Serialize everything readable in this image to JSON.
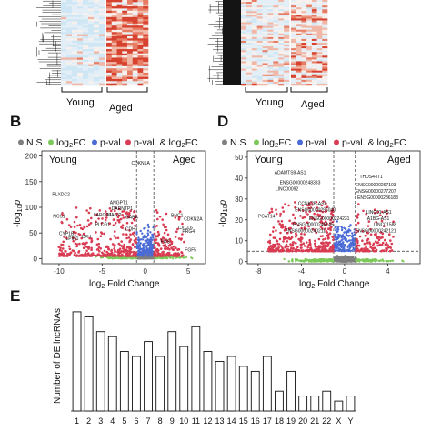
{
  "panels": {
    "top_groups": [
      "Young",
      "Aged"
    ],
    "B": {
      "letter": "B"
    },
    "D": {
      "letter": "D"
    },
    "E": {
      "letter": "E"
    }
  },
  "legend": {
    "ns": "N.S.",
    "fc_prefix": "log",
    "fc_sub": "2",
    "fc_suffix": "FC",
    "pval": "p-val",
    "both_prefix": "p-val. & log",
    "both_sub": "2",
    "both_suffix": "FC",
    "colors": {
      "ns": "#7f7f7f",
      "fc": "#7cc85a",
      "pval": "#4b6bd6",
      "both": "#d93c52"
    }
  },
  "chart_data": [
    {
      "type": "heatmap",
      "panel": "A-left",
      "column_groups": [
        "Young",
        "Aged"
      ],
      "colors": {
        "low": "#cfe7f5",
        "mid": "#f7f1ee",
        "high": "#d7422f"
      }
    },
    {
      "type": "heatmap",
      "panel": "A-right",
      "column_groups": [
        "Young",
        "Aged"
      ],
      "colors": {
        "low": "#cfe7f5",
        "mid": "#f7f1ee",
        "high": "#d7422f"
      }
    },
    {
      "type": "scatter",
      "panel": "B",
      "xlabel": "log2 Fold Change",
      "xlabel_parts": {
        "pre": "log",
        "sub": "2",
        "post": " Fold Change"
      },
      "ylabel_parts": {
        "pre": "-log",
        "sub": "10",
        "post": "p"
      },
      "xlim": [
        -12,
        7
      ],
      "ylim": [
        -10,
        210
      ],
      "xticks": [
        -10,
        -5,
        0,
        5
      ],
      "yticks": [
        0,
        50,
        100,
        150,
        200
      ],
      "group_labels": {
        "left": "Young",
        "right": "Aged"
      },
      "thresholds": {
        "fc": [
          -1,
          1
        ],
        "p": 5
      },
      "annotations": [
        {
          "text": "CDKN1A",
          "x": -1.6,
          "y": 183
        },
        {
          "text": "PLXDC2",
          "x": -10.8,
          "y": 122
        },
        {
          "text": "ANGPT1",
          "x": -4.1,
          "y": 106
        },
        {
          "text": "DARNTP1",
          "x": -3.9,
          "y": 95
        },
        {
          "text": "NCS1",
          "x": -10.7,
          "y": 80
        },
        {
          "text": "LARGE1",
          "x": -6.0,
          "y": 82
        },
        {
          "text": "MAGI2",
          "x": -4.4,
          "y": 82
        },
        {
          "text": "GABA",
          "x": -2.3,
          "y": 78
        },
        {
          "text": "BNC1",
          "x": 3.0,
          "y": 81
        },
        {
          "text": "CDKN2A",
          "x": 4.5,
          "y": 74
        },
        {
          "text": "CXCL6",
          "x": 3.8,
          "y": 57
        },
        {
          "text": "PLCG1",
          "x": -5.8,
          "y": 64
        },
        {
          "text": "CDH7",
          "x": -2.3,
          "y": 55
        },
        {
          "text": "PRG4",
          "x": 4.3,
          "y": 50
        },
        {
          "text": "CYP1B1",
          "x": -10.0,
          "y": 46
        },
        {
          "text": "CFH",
          "x": -7.4,
          "y": 40
        },
        {
          "text": "LPIN1",
          "x": -9.2,
          "y": 36
        },
        {
          "text": "FOS",
          "x": 1.8,
          "y": 30
        },
        {
          "text": "FGF5",
          "x": 4.6,
          "y": 14
        }
      ]
    },
    {
      "type": "scatter",
      "panel": "D",
      "xlabel": "log2 Fold Change",
      "xlabel_parts": {
        "pre": "log",
        "sub": "2",
        "post": " Fold Change"
      },
      "ylabel_parts": {
        "pre": "-log",
        "sub": "10",
        "post": "p"
      },
      "xlim": [
        -9,
        7
      ],
      "ylim": [
        -1,
        53
      ],
      "xticks": [
        -8,
        -4,
        0,
        4
      ],
      "yticks": [
        0,
        10,
        20,
        30,
        40,
        50
      ],
      "group_labels": {
        "left": "Young",
        "right": "Aged"
      },
      "thresholds": {
        "fc": [
          -1,
          1
        ],
        "p": 5
      },
      "annotations": [
        {
          "text": "THDS4-IT1",
          "x": 1.4,
          "y": 40
        },
        {
          "text": "ADAMTS9-AS1",
          "x": -6.5,
          "y": 42
        },
        {
          "text": "ENSG00000248333",
          "x": -6.0,
          "y": 37
        },
        {
          "text": "ENSG00000267103",
          "x": 1.0,
          "y": 36
        },
        {
          "text": "LINC00092",
          "x": -6.4,
          "y": 34
        },
        {
          "text": "ENSG00000277207",
          "x": 1.0,
          "y": 33
        },
        {
          "text": "ENSG00000286188",
          "x": 1.2,
          "y": 30
        },
        {
          "text": "CCNK2P-AS1",
          "x": -4.3,
          "y": 27
        },
        {
          "text": "ENSG00000296040",
          "x": -4.6,
          "y": 24
        },
        {
          "text": "LINC01-AS1",
          "x": 2.0,
          "y": 23
        },
        {
          "text": "PCAT14",
          "x": -8.0,
          "y": 21
        },
        {
          "text": "ENSG00000224231",
          "x": -3.3,
          "y": 20
        },
        {
          "text": "A1BG-AS1",
          "x": 2.1,
          "y": 20
        },
        {
          "text": "ENSG00000246145",
          "x": -4.8,
          "y": 17
        },
        {
          "text": "LINC01588",
          "x": 2.7,
          "y": 17
        },
        {
          "text": "ENSG00000240211",
          "x": -5.5,
          "y": 14
        },
        {
          "text": "ENSG00000242121",
          "x": 1.0,
          "y": 14
        }
      ]
    },
    {
      "type": "bar",
      "panel": "E",
      "ylabel": "Number of DE lncRNAs",
      "categories": [
        "1",
        "2",
        "3",
        "4",
        "5",
        "6",
        "7",
        "8",
        "9",
        "10",
        "11",
        "12",
        "13",
        "14",
        "15",
        "16",
        "17",
        "18",
        "19",
        "20",
        "21",
        "22",
        "X",
        "Y"
      ],
      "tick_labels": [
        "1",
        "2",
        "3",
        "4",
        "5",
        "6",
        "7",
        "8",
        "9",
        "10",
        "11",
        "12",
        "13",
        "14",
        "15",
        "16",
        "17",
        "18",
        "19",
        "20",
        "21",
        "22",
        "X",
        "Y"
      ],
      "values": [
        20,
        19,
        16,
        15,
        12,
        11,
        14,
        11,
        16,
        13,
        17,
        12,
        10,
        11,
        9,
        8,
        11,
        4,
        8,
        3,
        3,
        4,
        2,
        3
      ],
      "ylim": [
        0,
        22
      ],
      "bar_color": "#ffffff",
      "edge_color": "#111111"
    }
  ]
}
